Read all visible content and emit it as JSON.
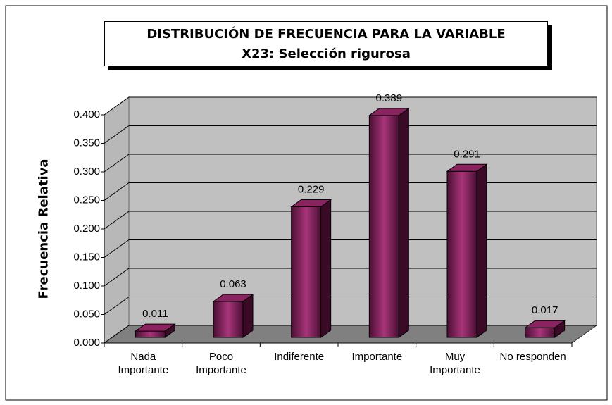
{
  "chart_data": {
    "type": "bar",
    "title": "DISTRIBUCIÓN DE FRECUENCIA PARA LA VARIABLE",
    "subtitle": "X23: Selección rigurosa",
    "y_label": "Frecuencia Relativa",
    "categories": [
      "Nada Importante",
      "Poco Importante",
      "Indiferente",
      "Importante",
      "Muy Importante",
      "No responden"
    ],
    "values": [
      0.011,
      0.063,
      0.229,
      0.389,
      0.291,
      0.017
    ],
    "color": "#8a2360",
    "ylim": [
      0,
      0.4
    ],
    "yticks": [
      {
        "value": 0,
        "label": "0.000"
      },
      {
        "value": 0.05,
        "label": "0.050"
      },
      {
        "value": 0.1,
        "label": "0.100"
      },
      {
        "value": 0.15,
        "label": "0.150"
      },
      {
        "value": 0.2,
        "label": "0.200"
      },
      {
        "value": 0.25,
        "label": "0.250"
      },
      {
        "value": 0.3,
        "label": "0.300"
      },
      {
        "value": 0.35,
        "label": "0.350"
      },
      {
        "value": 0.4,
        "label": "0.400"
      }
    ],
    "grid": true
  }
}
